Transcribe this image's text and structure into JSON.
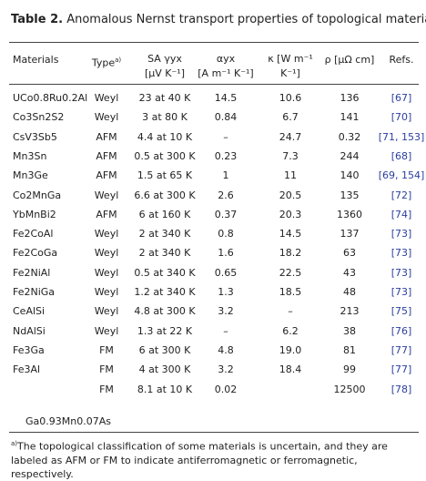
{
  "title": {
    "label": "Table 2.",
    "text": "Anomalous Nernst transport properties of topological materials."
  },
  "table": {
    "headers": [
      {
        "lines": [
          "Materials"
        ]
      },
      {
        "lines": [
          "Type"
        ],
        "sup": "a)"
      },
      {
        "lines": [
          "SA γyx",
          "[μV K⁻¹]"
        ]
      },
      {
        "lines": [
          "αyx",
          "[A m⁻¹ K⁻¹]"
        ]
      },
      {
        "lines": [
          "κ [W m⁻¹",
          "K⁻¹]"
        ]
      },
      {
        "lines": [
          "ρ [μΩ cm]"
        ]
      },
      {
        "lines": [
          "Refs."
        ]
      }
    ],
    "rows": [
      [
        "UCo0.8Ru0.2Al",
        "Weyl",
        "23 at 40 K",
        "14.5",
        "10.6",
        "136",
        "[67]"
      ],
      [
        "Co3Sn2S2",
        "Weyl",
        "3 at 80 K",
        "0.84",
        "6.7",
        "141",
        "[70]"
      ],
      [
        "CsV3Sb5",
        "AFM",
        "4.4 at 10 K",
        "–",
        "24.7",
        "0.32",
        "[71, 153]"
      ],
      [
        "Mn3Sn",
        "AFM",
        "0.5 at 300 K",
        "0.23",
        "7.3",
        "244",
        "[68]"
      ],
      [
        "Mn3Ge",
        "AFM",
        "1.5 at 65 K",
        "1",
        "11",
        "140",
        "[69, 154]"
      ],
      [
        "Co2MnGa",
        "Weyl",
        "6.6 at 300 K",
        "2.6",
        "20.5",
        "135",
        "[72]"
      ],
      [
        "YbMnBi2",
        "AFM",
        "6 at 160 K",
        "0.37",
        "20.3",
        "1360",
        "[74]"
      ],
      [
        "Fe2CoAl",
        "Weyl",
        "2 at 340 K",
        "0.8",
        "14.5",
        "137",
        "[73]"
      ],
      [
        "Fe2CoGa",
        "Weyl",
        "2 at 340 K",
        "1.6",
        "18.2",
        "63",
        "[73]"
      ],
      [
        "Fe2NiAl",
        "Weyl",
        "0.5 at 340 K",
        "0.65",
        "22.5",
        "43",
        "[73]"
      ],
      [
        "Fe2NiGa",
        "Weyl",
        "1.2 at 340 K",
        "1.3",
        "18.5",
        "48",
        "[73]"
      ],
      [
        "CeAlSi",
        "Weyl",
        "4.8 at 300 K",
        "3.2",
        "–",
        "213",
        "[75]"
      ],
      [
        "NdAlSi",
        "Weyl",
        "1.3 at 22 K",
        "–",
        "6.2",
        "38",
        "[76]"
      ],
      [
        "Fe3Ga",
        "FM",
        "6 at 300 K",
        "4.8",
        "19.0",
        "81",
        "[77]"
      ],
      [
        "Fe3Al",
        "FM",
        "4 at 300 K",
        "3.2",
        "18.4",
        "99",
        "[77]"
      ],
      [
        null,
        "FM",
        "8.1 at 10 K",
        "0.02",
        null,
        "12500",
        "[78]"
      ]
    ],
    "trailing_text": "Ga0.93Mn0.07As"
  },
  "footnote": {
    "mark": "a)",
    "text": "The topological classification of some materials is uncertain, and they are labeled as AFM or FM to indicate antiferromagnetic or ferromagnetic, respectively."
  }
}
